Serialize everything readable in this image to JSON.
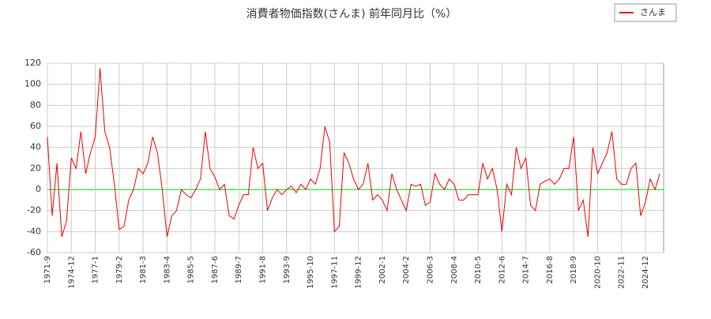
{
  "chart_data": {
    "type": "line",
    "title": "消費者物価指数(さんま) 前年同月比（%）",
    "categories": [
      "1971-9",
      null,
      null,
      null,
      null,
      "1974-12",
      null,
      null,
      null,
      null,
      "1977-1",
      null,
      null,
      null,
      null,
      "1979-2",
      null,
      null,
      null,
      null,
      "1981-3",
      null,
      null,
      null,
      null,
      "1983-4",
      null,
      null,
      null,
      null,
      "1985-5",
      null,
      null,
      null,
      null,
      "1987-6",
      null,
      null,
      null,
      null,
      "1989-7",
      null,
      null,
      null,
      null,
      "1991-8",
      null,
      null,
      null,
      null,
      "1993-9",
      null,
      null,
      null,
      null,
      "1995-10",
      null,
      null,
      null,
      null,
      "1997-11",
      null,
      null,
      null,
      null,
      "1999-12",
      null,
      null,
      null,
      null,
      "2002-1",
      null,
      null,
      null,
      null,
      "2004-2",
      null,
      null,
      null,
      null,
      "2006-3",
      null,
      null,
      null,
      null,
      "2008-4",
      null,
      null,
      null,
      null,
      "2010-5",
      null,
      null,
      null,
      null,
      "2012-6",
      null,
      null,
      null,
      null,
      "2014-7",
      null,
      null,
      null,
      null,
      "2016-8",
      null,
      null,
      null,
      null,
      "2018-9",
      null,
      null,
      null,
      null,
      "2020-10",
      null,
      null,
      null,
      null,
      "2022-11",
      null,
      null,
      null,
      null,
      "2024-12",
      null,
      null,
      null
    ],
    "series": [
      {
        "name": "さんま",
        "color": "#ee0000",
        "values": [
          50,
          -25,
          25,
          -45,
          -30,
          30,
          20,
          55,
          15,
          35,
          50,
          115,
          55,
          40,
          5,
          -38,
          -35,
          -10,
          0,
          20,
          15,
          25,
          50,
          35,
          0,
          -45,
          -25,
          -20,
          0,
          -5,
          -8,
          0,
          10,
          55,
          20,
          12,
          0,
          5,
          -25,
          -28,
          -15,
          -5,
          -5,
          40,
          20,
          25,
          -20,
          -8,
          0,
          -5,
          0,
          3,
          -3,
          5,
          0,
          10,
          5,
          20,
          60,
          45,
          -40,
          -35,
          35,
          25,
          10,
          0,
          5,
          25,
          -10,
          -5,
          -10,
          -20,
          15,
          0,
          -10,
          -20,
          5,
          3,
          5,
          -15,
          -12,
          15,
          5,
          0,
          10,
          5,
          -10,
          -10,
          -5,
          -5,
          -5,
          25,
          10,
          20,
          0,
          -40,
          5,
          -5,
          40,
          20,
          30,
          -15,
          -20,
          5,
          8,
          10,
          5,
          10,
          20,
          20,
          50,
          -20,
          -10,
          -45,
          40,
          15,
          25,
          35,
          55,
          10,
          5,
          5,
          20,
          25,
          -25,
          -12,
          10,
          0,
          15
        ]
      }
    ],
    "ylim": [
      -60,
      120
    ],
    "yticks": [
      -60,
      -40,
      -20,
      0,
      20,
      40,
      60,
      80,
      100,
      120
    ],
    "grid": true,
    "zero_line_color": "#00cc00",
    "legend": "top-right"
  }
}
